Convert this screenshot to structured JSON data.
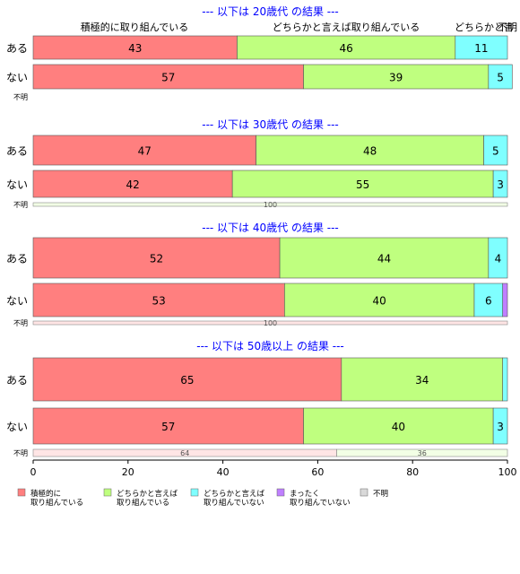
{
  "chart_data": {
    "type": "bar",
    "orientation": "horizontal",
    "stacked": true,
    "xlim": [
      0,
      100
    ],
    "x_ticks": [
      "0",
      "20",
      "40",
      "60",
      "80",
      "100"
    ],
    "top_category_labels": [
      "積極的に取り組んでいる",
      "どちらかと言えば取り組んでいる",
      "どちらかと言",
      "不明"
    ],
    "legend": {
      "placement": "bottom",
      "items": [
        {
          "label_lines": [
            "積極的に",
            "取り組んでいる"
          ],
          "color": "#FF7F7F"
        },
        {
          "label_lines": [
            "どちらかと言えば",
            "取り組んでいる"
          ],
          "color": "#BFFF7F"
        },
        {
          "label_lines": [
            "どちらかと言えば",
            "取り組んでいない"
          ],
          "color": "#7FFFFF"
        },
        {
          "label_lines": [
            "まったく",
            "取り組んでいない"
          ],
          "color": "#BF7FFF"
        },
        {
          "label_lines": [
            "不明"
          ],
          "color": "#D9D9D9"
        }
      ]
    },
    "panels": [
      {
        "title": "--- 以下は 20歳代 の結果 ---",
        "rows": [
          {
            "label": "ある",
            "values": [
              43,
              46,
              11,
              0,
              0
            ]
          },
          {
            "label": "ない",
            "values": [
              57,
              39,
              5,
              0,
              0
            ]
          }
        ],
        "unknown": {
          "label": "不明",
          "values": [],
          "texts": []
        }
      },
      {
        "title": "--- 以下は 30歳代 の結果 ---",
        "rows": [
          {
            "label": "ある",
            "values": [
              47,
              48,
              5,
              0,
              0
            ]
          },
          {
            "label": "ない",
            "values": [
              42,
              55,
              3,
              0,
              0
            ]
          }
        ],
        "unknown": {
          "label": "不明",
          "values": [
            0,
            100,
            0,
            0,
            0
          ],
          "texts": [
            "",
            "100",
            "",
            "",
            ""
          ]
        }
      },
      {
        "title": "--- 以下は 40歳代 の結果 ---",
        "rows": [
          {
            "label": "ある",
            "values": [
              52,
              44,
              4,
              0,
              0
            ]
          },
          {
            "label": "ない",
            "values": [
              53,
              40,
              6,
              1,
              0
            ]
          }
        ],
        "unknown": {
          "label": "不明",
          "values": [
            100,
            0,
            0,
            0,
            0
          ],
          "texts": [
            "100",
            "",
            "",
            "",
            ""
          ]
        }
      },
      {
        "title": "--- 以下は 50歳以上 の結果 ---",
        "rows": [
          {
            "label": "ある",
            "values": [
              65,
              34,
              1,
              0,
              0
            ]
          },
          {
            "label": "ない",
            "values": [
              57,
              40,
              3,
              0,
              0
            ]
          }
        ],
        "unknown": {
          "label": "不明",
          "values": [
            64,
            36,
            0,
            0,
            0
          ],
          "texts": [
            "64",
            "36",
            "",
            "",
            ""
          ]
        }
      }
    ]
  }
}
